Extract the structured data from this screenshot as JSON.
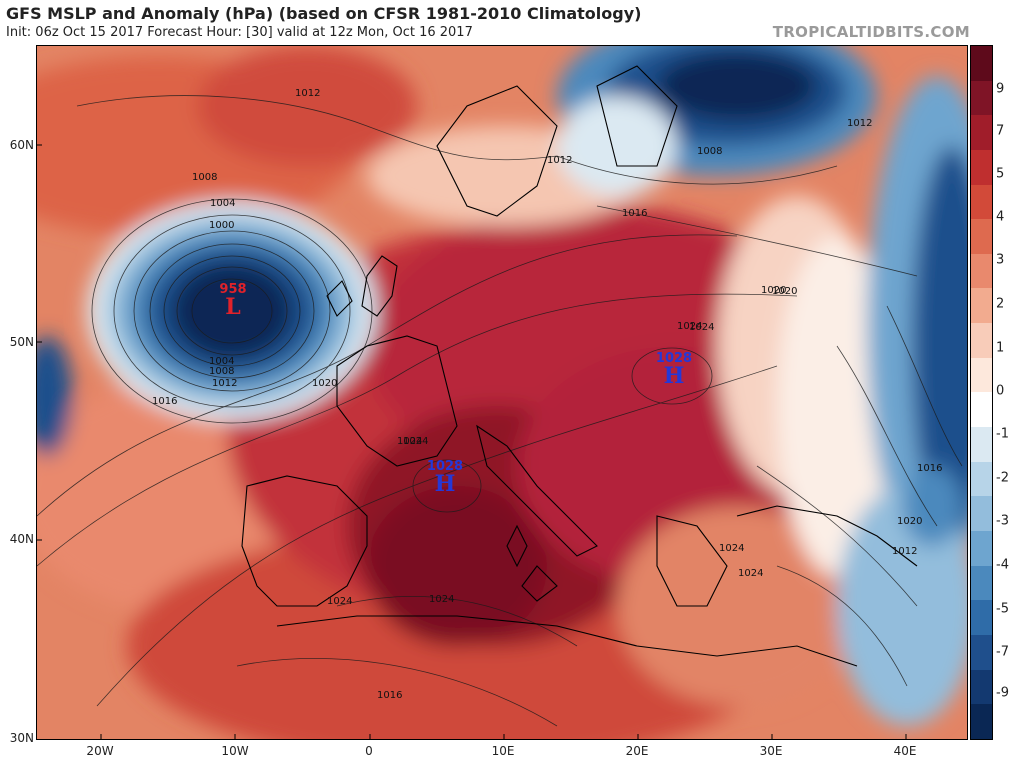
{
  "title": "GFS MSLP and Anomaly (hPa) (based on CFSR 1981-2010 Climatology)",
  "subtitle": "Init: 06z Oct 15 2017   Forecast Hour: [30]   valid at 12z Mon, Oct 16 2017",
  "brand": "TROPICALTIDBITS.COM",
  "lat_labels": [
    "60N",
    "50N",
    "40N",
    "30N"
  ],
  "lon_labels": [
    "20W",
    "10W",
    "0",
    "10E",
    "20E",
    "30E",
    "40E"
  ],
  "colorbar": {
    "labels": [
      "9",
      "7",
      "5",
      "4",
      "3",
      "2",
      "1",
      "0",
      "-1",
      "-2",
      "-3",
      "-4",
      "-5",
      "-7",
      "-9"
    ],
    "colors": [
      "#5e0a1b",
      "#7f1426",
      "#a01d2a",
      "#bf2f2f",
      "#d24a39",
      "#de6a4f",
      "#e9896d",
      "#f2ab8f",
      "#f8ccb9",
      "#fde8dc",
      "#ffffff",
      "#dbe9f2",
      "#b7d4e8",
      "#93bddc",
      "#6ea5cf",
      "#4b89bd",
      "#2f6ca8",
      "#1f4f8c",
      "#133970",
      "#0a2754"
    ]
  },
  "systems": [
    {
      "type": "L",
      "value": "958",
      "color": "#e0222a"
    },
    {
      "type": "H",
      "value": "1028",
      "color": "#2438d8"
    },
    {
      "type": "H",
      "value": "1028",
      "color": "#2438d8"
    }
  ],
  "isobar_labels": [
    "1012",
    "1008",
    "1004",
    "1000",
    "1004",
    "1008",
    "1012",
    "1016",
    "1020",
    "1024",
    "1012",
    "1016",
    "1008",
    "1012",
    "1016",
    "1020",
    "1024",
    "1024",
    "1024",
    "1024",
    "1024",
    "1016",
    "1020",
    "1012",
    "1024",
    "1020",
    "1024"
  ]
}
